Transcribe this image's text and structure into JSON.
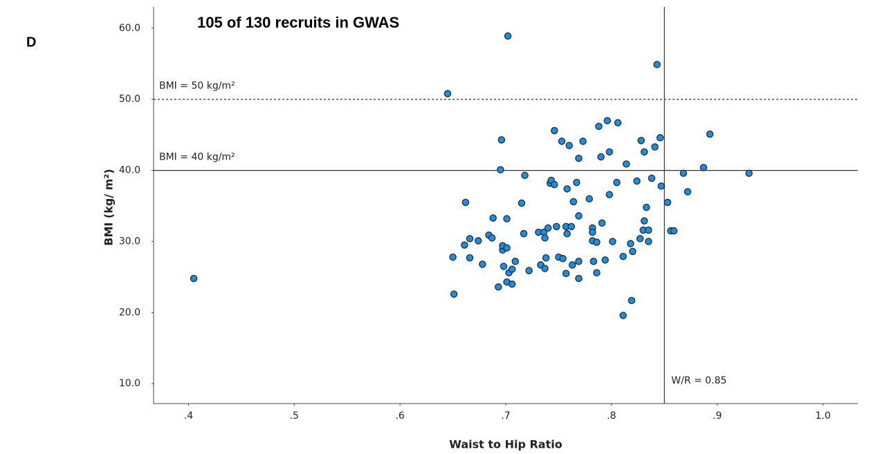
{
  "panel_label": "D",
  "chart_data": {
    "type": "scatter",
    "title": "105 of 130 recruits in GWAS",
    "x_label": "Waist to Hip Ratio",
    "y_label": "BMI (kg/ m²)",
    "xlim": [
      0.367,
      1.033
    ],
    "ylim": [
      7.2,
      63
    ],
    "xticks": [
      {
        "value": 0.4,
        "label": ".4"
      },
      {
        "value": 0.5,
        "label": ".5"
      },
      {
        "value": 0.6,
        "label": ".6"
      },
      {
        "value": 0.7,
        "label": ".7"
      },
      {
        "value": 0.8,
        "label": ".8"
      },
      {
        "value": 0.9,
        "label": ".9"
      },
      {
        "value": 1.0,
        "label": "1.0"
      }
    ],
    "yticks": [
      {
        "value": 10,
        "label": "10.0"
      },
      {
        "value": 20,
        "label": "20.0"
      },
      {
        "value": 30,
        "label": "30.0"
      },
      {
        "value": 40,
        "label": "40.0"
      },
      {
        "value": 50,
        "label": "50.0"
      },
      {
        "value": 60,
        "label": "60.0"
      }
    ],
    "color": "#1f8fdd",
    "hlines": [
      {
        "value": 50,
        "label": "BMI = 50 kg/m²",
        "style": "dashed"
      },
      {
        "value": 40,
        "label": "BMI = 40 kg/m²",
        "style": "solid"
      }
    ],
    "vlines": [
      {
        "value": 0.85,
        "label": "W/R = 0.85",
        "style": "solid"
      }
    ],
    "x": [
      0.405,
      0.645,
      0.702,
      0.843,
      0.651,
      0.65,
      0.661,
      0.662,
      0.666,
      0.666,
      0.674,
      0.678,
      0.684,
      0.687,
      0.688,
      0.693,
      0.696,
      0.695,
      0.697,
      0.697,
      0.698,
      0.701,
      0.701,
      0.701,
      0.703,
      0.706,
      0.706,
      0.709,
      0.715,
      0.717,
      0.718,
      0.722,
      0.731,
      0.733,
      0.736,
      0.737,
      0.737,
      0.738,
      0.74,
      0.742,
      0.743,
      0.746,
      0.746,
      0.748,
      0.75,
      0.753,
      0.754,
      0.757,
      0.757,
      0.758,
      0.758,
      0.76,
      0.762,
      0.763,
      0.764,
      0.767,
      0.769,
      0.769,
      0.769,
      0.769,
      0.773,
      0.779,
      0.782,
      0.782,
      0.782,
      0.783,
      0.786,
      0.786,
      0.788,
      0.79,
      0.791,
      0.794,
      0.796,
      0.798,
      0.798,
      0.801,
      0.805,
      0.806,
      0.811,
      0.811,
      0.814,
      0.818,
      0.819,
      0.82,
      0.824,
      0.827,
      0.828,
      0.83,
      0.831,
      0.831,
      0.833,
      0.835,
      0.835,
      0.838,
      0.841,
      0.846,
      0.847,
      0.853,
      0.856,
      0.859,
      0.868,
      0.872,
      0.887,
      0.893,
      0.93
    ],
    "values": [
      24.8,
      50.8,
      58.9,
      54.9,
      22.6,
      27.8,
      29.5,
      35.5,
      30.4,
      27.7,
      30.1,
      26.8,
      30.9,
      30.5,
      33.3,
      23.6,
      44.3,
      40.1,
      28.8,
      29.4,
      26.5,
      29.1,
      33.2,
      24.3,
      25.6,
      26.1,
      24.0,
      27.2,
      35.4,
      31.1,
      39.3,
      25.9,
      31.3,
      26.7,
      31.3,
      26.2,
      30.5,
      27.7,
      31.9,
      38.2,
      38.6,
      38.0,
      45.6,
      32.1,
      27.8,
      44.1,
      27.6,
      25.5,
      32.1,
      31.1,
      37.4,
      43.5,
      32.1,
      26.7,
      35.6,
      38.3,
      27.2,
      41.7,
      33.6,
      24.8,
      44.1,
      36.0,
      31.9,
      30.1,
      31.3,
      27.2,
      29.9,
      25.6,
      46.2,
      41.9,
      32.6,
      27.4,
      47.0,
      36.6,
      42.6,
      30.0,
      38.3,
      46.7,
      27.9,
      19.6,
      40.9,
      29.7,
      21.7,
      28.6,
      38.5,
      30.4,
      44.2,
      31.6,
      32.9,
      42.6,
      34.8,
      30.0,
      31.6,
      38.9,
      43.3,
      44.6,
      37.8,
      35.5,
      31.5,
      31.5,
      39.6,
      37.0,
      40.4,
      45.1,
      39.6
    ]
  }
}
